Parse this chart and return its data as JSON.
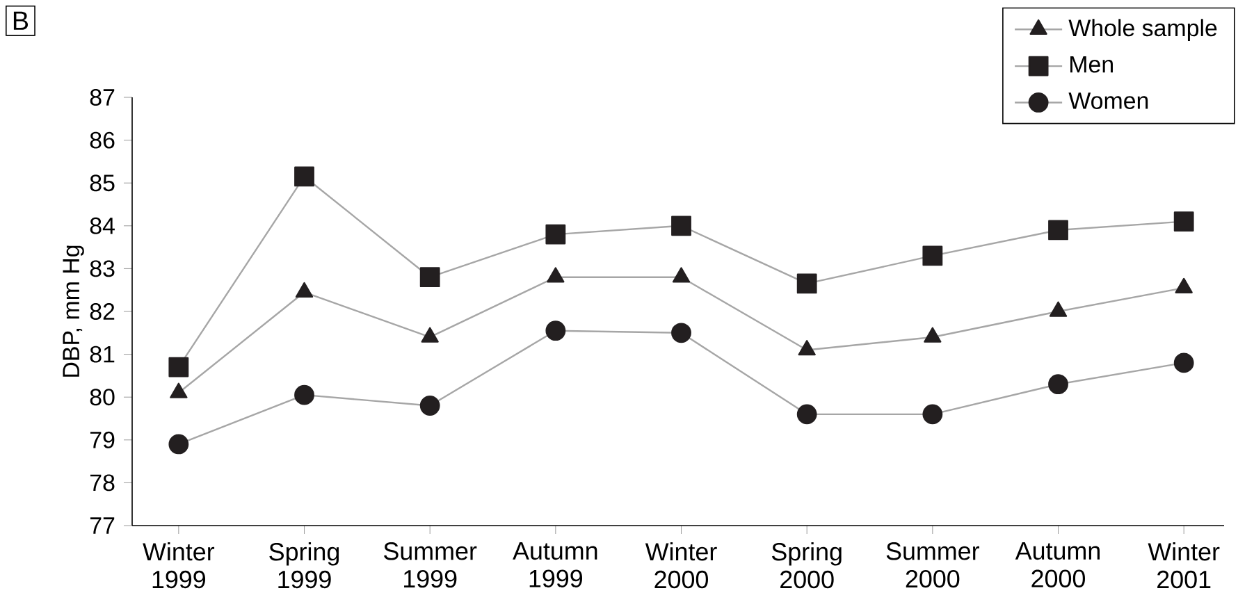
{
  "chart_data": {
    "type": "line",
    "ylabel": "DBP, mm Hg",
    "annotations": [
      "B"
    ],
    "categories": [
      "Winter 1999",
      "Spring 1999",
      "Summer 1999",
      "Autumn 1999",
      "Winter 2000",
      "Spring 2000",
      "Summer 2000",
      "Autumn 2000",
      "Winter 2001"
    ],
    "series": [
      {
        "name": "Whole sample",
        "color": "#231f20",
        "marker": "triangle",
        "values": [
          80.1,
          82.45,
          81.4,
          82.8,
          82.8,
          81.1,
          81.4,
          82.0,
          82.55
        ]
      },
      {
        "name": "Men",
        "color": "#231f20",
        "marker": "square",
        "values": [
          80.7,
          85.15,
          82.8,
          83.8,
          84.0,
          82.65,
          83.3,
          83.9,
          84.1
        ]
      },
      {
        "name": "Women",
        "color": "#231f20",
        "marker": "circle",
        "values": [
          78.9,
          80.05,
          79.8,
          81.55,
          81.5,
          79.6,
          79.6,
          80.3,
          80.8
        ]
      }
    ],
    "ylim": [
      77,
      87
    ],
    "yticks": [
      77,
      78,
      79,
      80,
      81,
      82,
      83,
      84,
      85,
      86,
      87
    ],
    "grid": false,
    "legend": "top right",
    "line_style": "solid"
  }
}
